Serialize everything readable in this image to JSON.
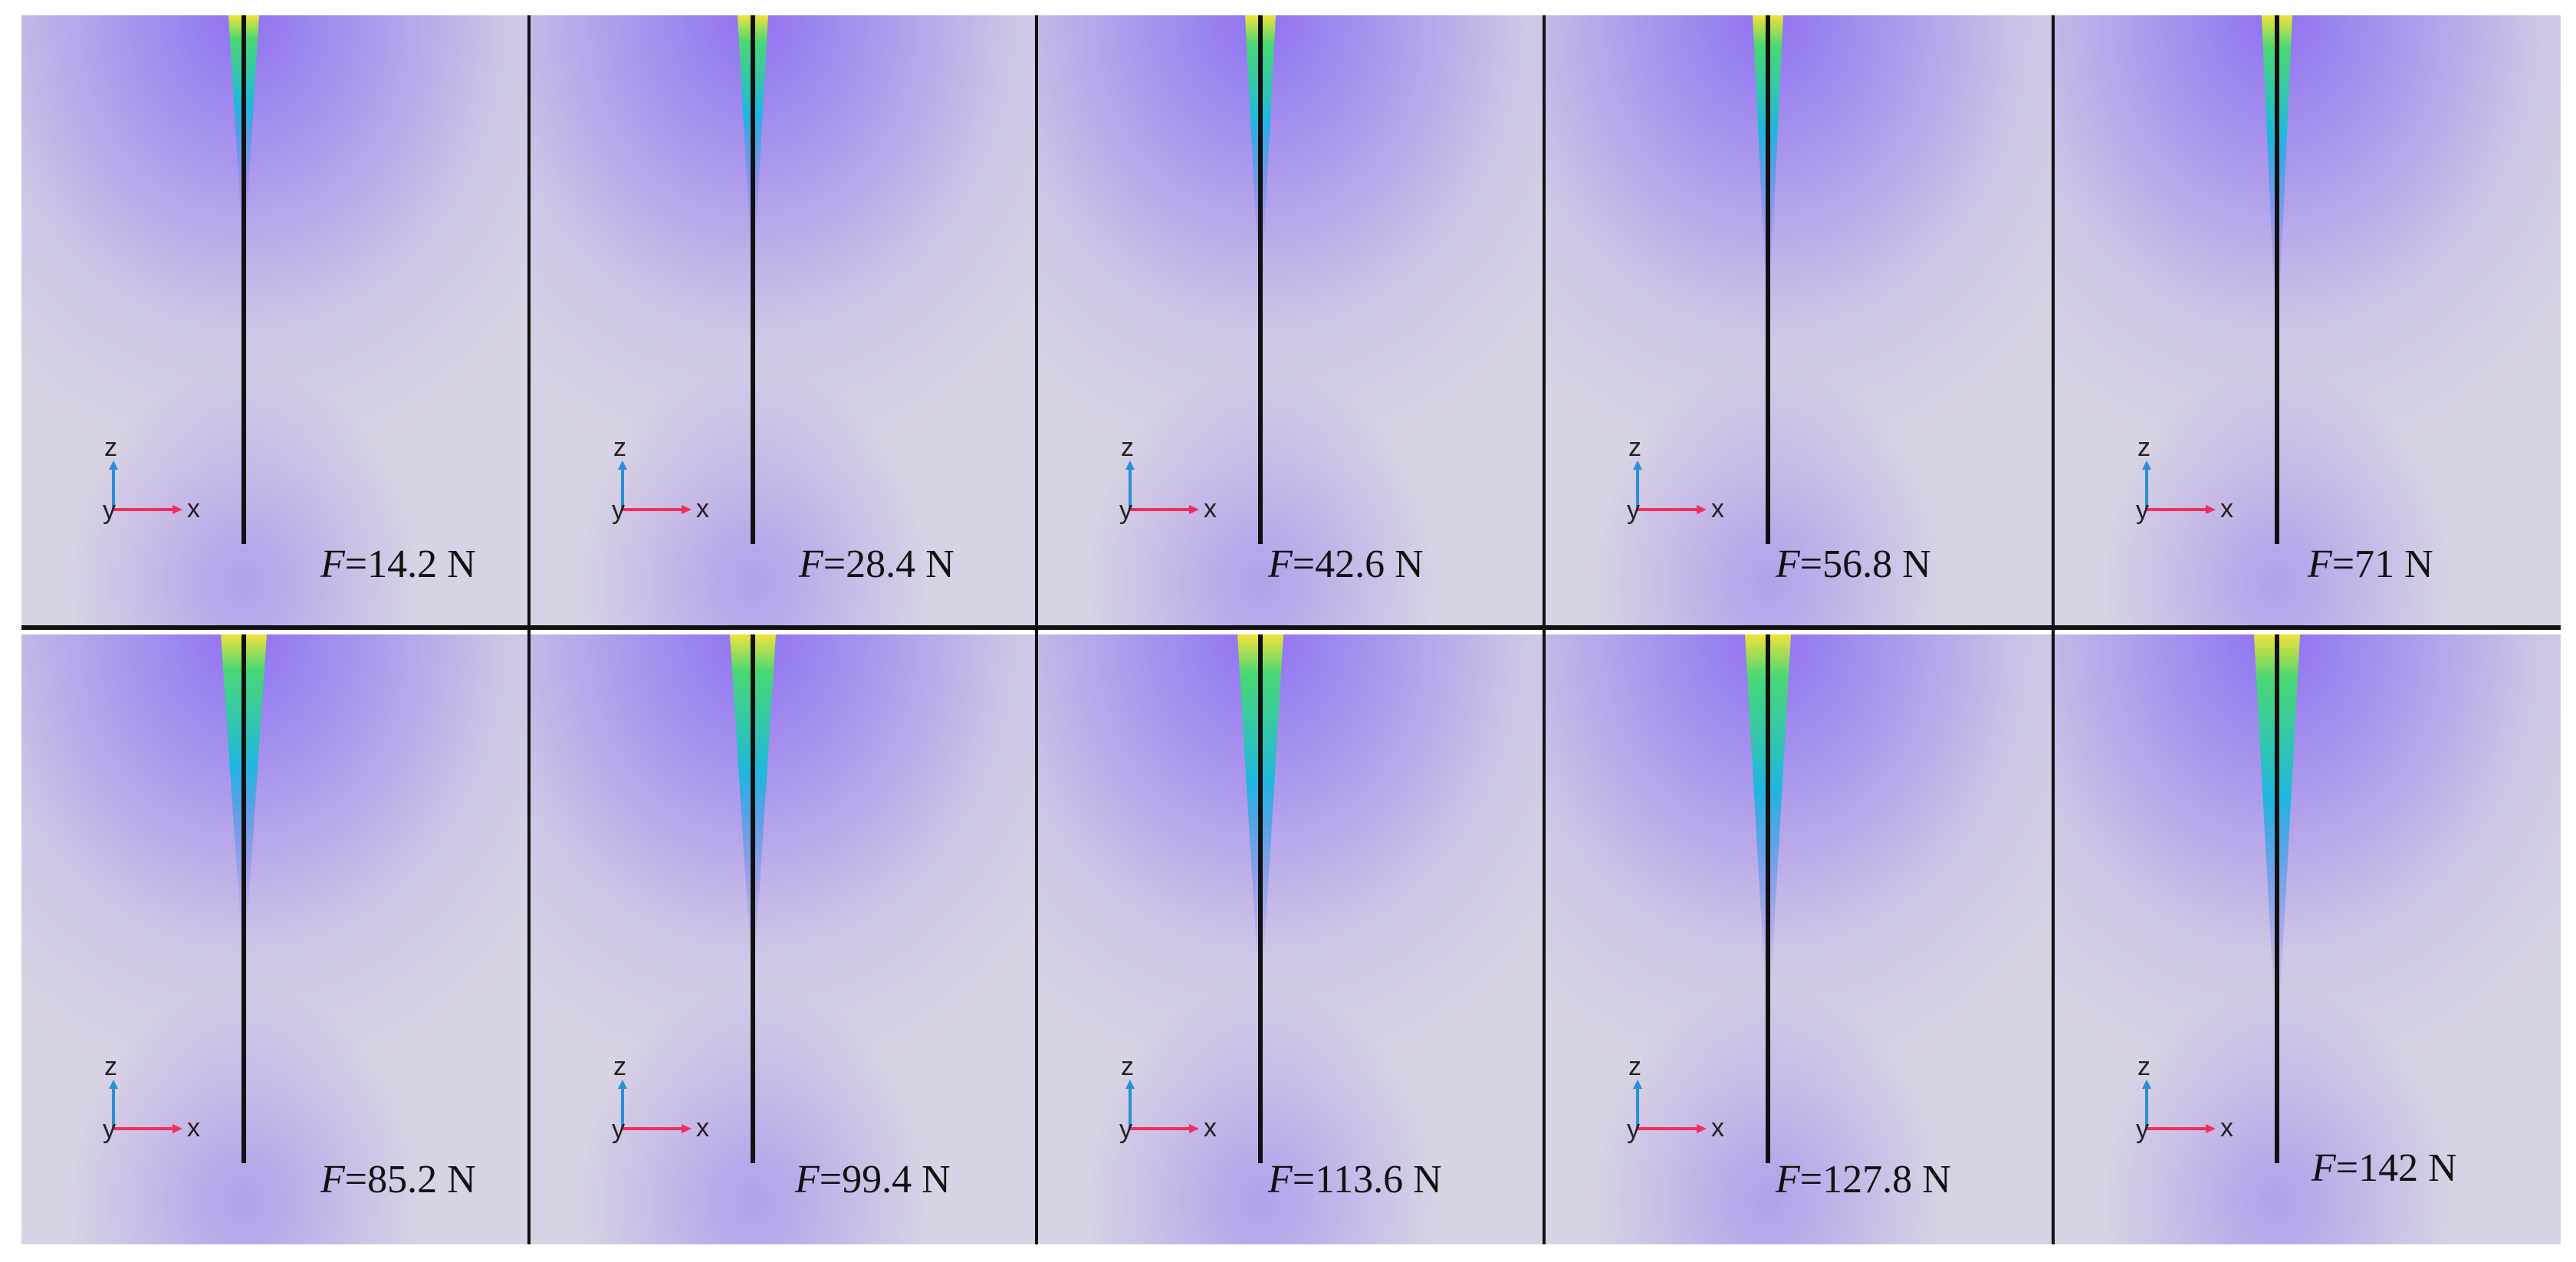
{
  "panels": [
    {
      "force_symbol": "F",
      "force_text": "=14.2 N",
      "crack_depth": 0.33
    },
    {
      "force_symbol": "F",
      "force_text": "=28.4 N",
      "crack_depth": 0.36
    },
    {
      "force_symbol": "F",
      "force_text": "=42.6 N",
      "crack_depth": 0.39
    },
    {
      "force_symbol": "F",
      "force_text": "=56.8 N",
      "crack_depth": 0.42
    },
    {
      "force_symbol": "F",
      "force_text": "=71 N",
      "crack_depth": 0.45
    },
    {
      "force_symbol": "F",
      "force_text": "=85.2 N",
      "crack_depth": 0.48
    },
    {
      "force_symbol": "F",
      "force_text": "=99.4 N",
      "crack_depth": 0.51
    },
    {
      "force_symbol": "F",
      "force_text": "=113.6 N",
      "crack_depth": 0.54
    },
    {
      "force_symbol": "F",
      "force_text": "=127.8 N",
      "crack_depth": 0.57
    },
    {
      "force_symbol": "F",
      "force_text": "=142 N",
      "crack_depth": 0.6
    }
  ],
  "axes": {
    "z": "z",
    "y": "y",
    "x": "x"
  },
  "colors": {
    "background": "#d8d3e4",
    "field_violet": "#8a6cf2",
    "field_cyan": "#1fb6e0",
    "field_green": "#49d874",
    "field_yellow": "#f2e23a",
    "needle": "#111111",
    "axis_z": "#2a8ed8",
    "axis_x": "#f0305a",
    "separator": "#111111"
  }
}
